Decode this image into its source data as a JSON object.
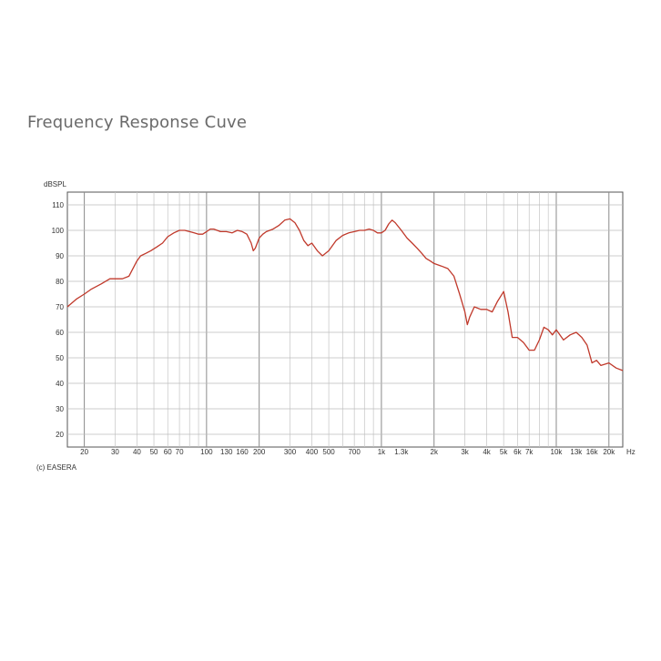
{
  "page": {
    "title": "Frequency Response Cuve",
    "copyright": "(c) EASERA"
  },
  "chart_data": {
    "type": "line",
    "title": "Frequency Response Cuve",
    "ylabel": "dBSPL",
    "xunit": "Hz",
    "xscale": "log",
    "xlim": [
      16,
      24000
    ],
    "ylim": [
      15,
      115
    ],
    "grid": true,
    "y_ticks": [
      110,
      100,
      90,
      80,
      70,
      60,
      50,
      40,
      30,
      20
    ],
    "x_ticks": [
      {
        "v": 20,
        "label": "20"
      },
      {
        "v": 30,
        "label": "30"
      },
      {
        "v": 40,
        "label": "40"
      },
      {
        "v": 50,
        "label": "50"
      },
      {
        "v": 60,
        "label": "60"
      },
      {
        "v": 70,
        "label": "70"
      },
      {
        "v": 100,
        "label": "100"
      },
      {
        "v": 130,
        "label": "130"
      },
      {
        "v": 160,
        "label": "160"
      },
      {
        "v": 200,
        "label": "200"
      },
      {
        "v": 300,
        "label": "300"
      },
      {
        "v": 400,
        "label": "400"
      },
      {
        "v": 500,
        "label": "500"
      },
      {
        "v": 700,
        "label": "700"
      },
      {
        "v": 1000,
        "label": "1k"
      },
      {
        "v": 1300,
        "label": "1.3k"
      },
      {
        "v": 2000,
        "label": "2k"
      },
      {
        "v": 3000,
        "label": "3k"
      },
      {
        "v": 4000,
        "label": "4k"
      },
      {
        "v": 5000,
        "label": "5k"
      },
      {
        "v": 6000,
        "label": "6k"
      },
      {
        "v": 7000,
        "label": "7k"
      },
      {
        "v": 10000,
        "label": "10k"
      },
      {
        "v": 13000,
        "label": "13k"
      },
      {
        "v": 16000,
        "label": "16k"
      },
      {
        "v": 20000,
        "label": "20k"
      }
    ],
    "series": [
      {
        "color": "#c0392b",
        "x": [
          16,
          18,
          20,
          22,
          25,
          28,
          30,
          33,
          36,
          40,
          42,
          45,
          48,
          52,
          56,
          60,
          65,
          70,
          75,
          80,
          85,
          90,
          95,
          100,
          105,
          110,
          115,
          120,
          130,
          140,
          150,
          160,
          170,
          180,
          185,
          190,
          200,
          210,
          220,
          240,
          260,
          280,
          300,
          320,
          340,
          360,
          380,
          400,
          430,
          460,
          500,
          550,
          600,
          650,
          700,
          750,
          800,
          850,
          900,
          950,
          1000,
          1050,
          1100,
          1150,
          1200,
          1300,
          1400,
          1500,
          1600,
          1700,
          1800,
          1900,
          2000,
          2200,
          2400,
          2600,
          2800,
          3000,
          3100,
          3200,
          3400,
          3700,
          4000,
          4300,
          4600,
          5000,
          5300,
          5600,
          6000,
          6500,
          7000,
          7500,
          8000,
          8500,
          9000,
          9500,
          10000,
          11000,
          12000,
          13000,
          14000,
          15000,
          16000,
          17000,
          18000,
          20000,
          22000,
          24000
        ],
        "y": [
          70,
          73,
          75,
          77,
          79,
          81,
          81,
          81,
          82,
          88,
          90,
          91,
          92,
          93.5,
          95,
          97.5,
          99,
          100,
          100,
          99.5,
          99,
          98.5,
          98.5,
          99.5,
          100.5,
          100.5,
          100,
          99.5,
          99.5,
          99,
          100,
          99.5,
          98.5,
          95,
          92,
          93,
          97,
          98.5,
          99.5,
          100.5,
          102,
          104,
          104.5,
          103,
          100,
          96,
          94,
          95,
          92,
          90,
          92,
          96,
          98,
          99,
          99.5,
          100,
          100,
          100.5,
          100,
          99,
          99,
          100,
          102.5,
          104,
          103,
          100,
          97,
          95,
          93,
          91,
          89,
          88,
          87,
          86,
          85,
          82,
          75,
          68,
          63,
          66,
          70,
          69,
          69,
          68,
          72,
          76,
          68,
          58,
          58,
          56,
          53,
          53,
          57,
          62,
          61,
          59,
          61,
          57,
          59,
          60,
          58,
          55,
          48,
          49,
          47,
          48,
          46,
          45
        ]
      }
    ]
  }
}
